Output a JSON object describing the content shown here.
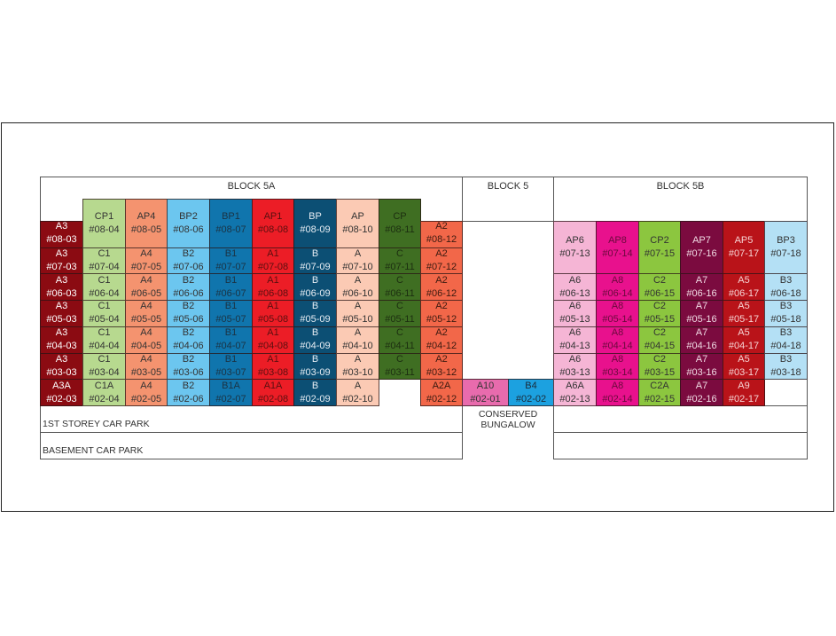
{
  "blocks": {
    "block_5a": "BLOCK 5A",
    "block_5": "BLOCK 5",
    "block_5b": "BLOCK 5B"
  },
  "labels": {
    "first_storey_car_park": "1ST STOREY CAR PARK",
    "basement_car_park": "BASEMENT CAR PARK",
    "conserved_bungalow": "CONSERVED BUNGALOW"
  },
  "columns": [
    {
      "stack": "03",
      "color": "#8b0b12",
      "text": "#ffffff",
      "top_floor": 8,
      "cells": [
        [
          "A3",
          "#08-03"
        ],
        [
          "A3",
          "#07-03"
        ],
        [
          "A3",
          "#06-03"
        ],
        [
          "A3",
          "#05-03"
        ],
        [
          "A3",
          "#04-03"
        ],
        [
          "A3",
          "#03-03"
        ],
        [
          "A3A",
          "#02-03"
        ]
      ]
    },
    {
      "stack": "04",
      "color": "#b7d98f",
      "text": "#333333",
      "top_floor": 8,
      "cells": [
        [
          "CP1",
          "#08-04"
        ],
        [
          "C1",
          "#07-04"
        ],
        [
          "C1",
          "#06-04"
        ],
        [
          "C1",
          "#05-04"
        ],
        [
          "C1",
          "#04-04"
        ],
        [
          "C1",
          "#03-04"
        ],
        [
          "C1A",
          "#02-04"
        ]
      ]
    },
    {
      "stack": "05",
      "color": "#f4936f",
      "text": "#333333",
      "top_floor": 8,
      "cells": [
        [
          "AP4",
          "#08-05"
        ],
        [
          "A4",
          "#07-05"
        ],
        [
          "A4",
          "#06-05"
        ],
        [
          "A4",
          "#05-05"
        ],
        [
          "A4",
          "#04-05"
        ],
        [
          "A4",
          "#03-05"
        ],
        [
          "A4",
          "#02-05"
        ]
      ]
    },
    {
      "stack": "06",
      "color": "#6cc6ef",
      "text": "#333333",
      "top_floor": 8,
      "cells": [
        [
          "BP2",
          "#08-06"
        ],
        [
          "B2",
          "#07-06"
        ],
        [
          "B2",
          "#06-06"
        ],
        [
          "B2",
          "#05-06"
        ],
        [
          "B2",
          "#04-06"
        ],
        [
          "B2",
          "#03-06"
        ],
        [
          "B2",
          "#02-06"
        ]
      ]
    },
    {
      "stack": "07",
      "color": "#1075ad",
      "text": "#1b3344",
      "top_floor": 8,
      "cells": [
        [
          "BP1",
          "#08-07"
        ],
        [
          "B1",
          "#07-07"
        ],
        [
          "B1",
          "#06-07"
        ],
        [
          "B1",
          "#05-07"
        ],
        [
          "B1",
          "#04-07"
        ],
        [
          "B1",
          "#03-07"
        ],
        [
          "B1A",
          "#02-07"
        ]
      ]
    },
    {
      "stack": "08",
      "color": "#ec1d26",
      "text": "#5a1010",
      "top_floor": 8,
      "cells": [
        [
          "AP1",
          "#08-08"
        ],
        [
          "A1",
          "#07-08"
        ],
        [
          "A1",
          "#06-08"
        ],
        [
          "A1",
          "#05-08"
        ],
        [
          "A1",
          "#04-08"
        ],
        [
          "A1",
          "#03-08"
        ],
        [
          "A1A",
          "#02-08"
        ]
      ]
    },
    {
      "stack": "09",
      "color": "#0c4f74",
      "text": "#e8eef4",
      "top_floor": 8,
      "cells": [
        [
          "BP",
          "#08-09"
        ],
        [
          "B",
          "#07-09"
        ],
        [
          "B",
          "#06-09"
        ],
        [
          "B",
          "#05-09"
        ],
        [
          "B",
          "#04-09"
        ],
        [
          "B",
          "#03-09"
        ],
        [
          "B",
          "#02-09"
        ]
      ]
    },
    {
      "stack": "10",
      "color": "#fbcab4",
      "text": "#333333",
      "top_floor": 8,
      "cells": [
        [
          "AP",
          "#08-10"
        ],
        [
          "A",
          "#07-10"
        ],
        [
          "A",
          "#06-10"
        ],
        [
          "A",
          "#05-10"
        ],
        [
          "A",
          "#04-10"
        ],
        [
          "A",
          "#03-10"
        ],
        [
          "A",
          "#02-10"
        ]
      ]
    },
    {
      "stack": "11",
      "color": "#3f6e22",
      "text": "#1c2e10",
      "top_floor": 8,
      "cells": [
        [
          "CP",
          "#08-11"
        ],
        [
          "C",
          "#07-11"
        ],
        [
          "C",
          "#06-11"
        ],
        [
          "C",
          "#05-11"
        ],
        [
          "C",
          "#04-11"
        ],
        [
          "C",
          "#03-11"
        ]
      ]
    },
    {
      "stack": "12",
      "color": "#f26749",
      "text": "#3a1a10",
      "top_floor": 8,
      "cells": [
        [
          "A2",
          "#08-12"
        ],
        [
          "A2",
          "#07-12"
        ],
        [
          "A2",
          "#06-12"
        ],
        [
          "A2",
          "#05-12"
        ],
        [
          "A2",
          "#04-12"
        ],
        [
          "A2",
          "#03-12"
        ],
        [
          "A2A",
          "#02-12"
        ]
      ]
    },
    {
      "stack": "01",
      "color": "#e86bad",
      "text": "#333333",
      "top_floor": 2,
      "cells": [
        [
          "A10",
          "#02-01"
        ]
      ]
    },
    {
      "stack": "02",
      "color": "#1ca1e0",
      "text": "#1b2b3a",
      "top_floor": 2,
      "cells": [
        [
          "B4",
          "#02-02"
        ]
      ]
    },
    {
      "stack": "13",
      "color": "#f5b5d5",
      "text": "#333333",
      "top_floor": 7,
      "cells": [
        [
          "AP6",
          "#07-13"
        ],
        [
          "A6",
          "#06-13"
        ],
        [
          "A6",
          "#05-13"
        ],
        [
          "A6",
          "#04-13"
        ],
        [
          "A6",
          "#03-13"
        ],
        [
          "A6A",
          "#02-13"
        ]
      ]
    },
    {
      "stack": "14",
      "color": "#e8118d",
      "text": "#6a0a3c",
      "top_floor": 7,
      "cells": [
        [
          "AP8",
          "#07-14"
        ],
        [
          "A8",
          "#06-14"
        ],
        [
          "A8",
          "#05-14"
        ],
        [
          "A8",
          "#04-14"
        ],
        [
          "A8",
          "#03-14"
        ],
        [
          "A8",
          "#02-14"
        ]
      ]
    },
    {
      "stack": "15",
      "color": "#8cc63f",
      "text": "#333333",
      "top_floor": 7,
      "cells": [
        [
          "CP2",
          "#07-15"
        ],
        [
          "C2",
          "#06-15"
        ],
        [
          "C2",
          "#05-15"
        ],
        [
          "C2",
          "#04-15"
        ],
        [
          "C2",
          "#03-15"
        ],
        [
          "C2A",
          "#02-15"
        ]
      ]
    },
    {
      "stack": "16",
      "color": "#7b0b3f",
      "text": "#f0dbe4",
      "top_floor": 7,
      "cells": [
        [
          "AP7",
          "#07-16"
        ],
        [
          "A7",
          "#06-16"
        ],
        [
          "A7",
          "#05-16"
        ],
        [
          "A7",
          "#04-16"
        ],
        [
          "A7",
          "#03-16"
        ],
        [
          "A7",
          "#02-16"
        ]
      ]
    },
    {
      "stack": "17",
      "color": "#b91319",
      "text": "#f6d4d4",
      "top_floor": 7,
      "cells": [
        [
          "AP5",
          "#07-17"
        ],
        [
          "A5",
          "#06-17"
        ],
        [
          "A5",
          "#05-17"
        ],
        [
          "A5",
          "#04-17"
        ],
        [
          "A5",
          "#03-17"
        ],
        [
          "A9",
          "#02-17"
        ]
      ]
    },
    {
      "stack": "18",
      "color": "#b4e0f5",
      "text": "#333333",
      "top_floor": 7,
      "cells": [
        [
          "BP3",
          "#07-18"
        ],
        [
          "B3",
          "#06-18"
        ],
        [
          "B3",
          "#05-18"
        ],
        [
          "B3",
          "#04-18"
        ],
        [
          "B3",
          "#03-18"
        ]
      ]
    }
  ]
}
